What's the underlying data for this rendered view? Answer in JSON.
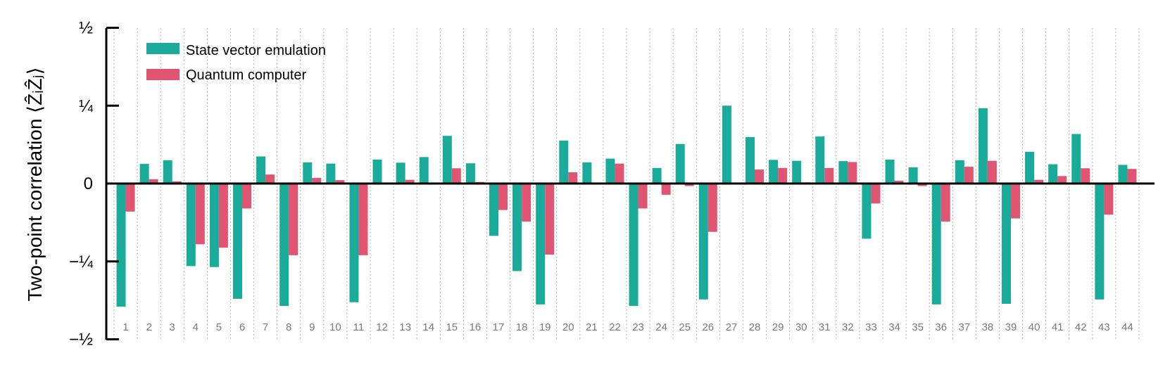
{
  "chart_data": {
    "type": "bar",
    "title": "",
    "xlabel": "",
    "ylabel": "Two-point correlation ⟨ẐᵢẐⱼ⟩",
    "ylim": [
      -0.5,
      0.5
    ],
    "yticks": [
      {
        "value": 0.5,
        "label": "½"
      },
      {
        "value": 0.25,
        "label": "¼"
      },
      {
        "value": 0,
        "label": "0"
      },
      {
        "value": -0.25,
        "label": "−¼"
      },
      {
        "value": -0.5,
        "label": "−½"
      }
    ],
    "grid": "vertical dotted separators",
    "legend_position": "top-left",
    "categories": [
      "1",
      "2",
      "3",
      "4",
      "5",
      "6",
      "7",
      "8",
      "9",
      "10",
      "11",
      "12",
      "13",
      "14",
      "15",
      "16",
      "17",
      "18",
      "19",
      "20",
      "21",
      "22",
      "23",
      "24",
      "25",
      "26",
      "27",
      "28",
      "29",
      "30",
      "31",
      "32",
      "33",
      "34",
      "35",
      "36",
      "37",
      "38",
      "39",
      "40",
      "41",
      "42",
      "43",
      "44"
    ],
    "series": [
      {
        "name": "State vector emulation",
        "color": "#1aab9b",
        "values": [
          -0.395,
          0.063,
          0.075,
          -0.265,
          -0.268,
          -0.37,
          0.087,
          -0.393,
          0.068,
          0.064,
          -0.381,
          0.077,
          0.067,
          0.085,
          0.153,
          0.065,
          -0.168,
          -0.281,
          -0.388,
          0.138,
          0.068,
          0.08,
          -0.393,
          0.05,
          0.127,
          -0.372,
          0.25,
          0.149,
          0.076,
          0.073,
          0.151,
          0.072,
          -0.177,
          0.077,
          0.052,
          -0.388,
          0.075,
          0.242,
          -0.386,
          0.102,
          0.062,
          0.159,
          -0.372,
          0.06
        ]
      },
      {
        "name": "Quantum computer",
        "color": "#e05572",
        "values": [
          -0.09,
          0.014,
          0.007,
          -0.195,
          -0.206,
          -0.08,
          0.029,
          -0.23,
          0.018,
          0.011,
          -0.23,
          -0.003,
          0.012,
          0.0,
          0.049,
          0.005,
          -0.085,
          -0.122,
          -0.228,
          0.036,
          0.0,
          0.064,
          -0.08,
          -0.036,
          -0.008,
          -0.155,
          0.0,
          0.045,
          0.05,
          0.004,
          0.05,
          0.069,
          -0.064,
          0.009,
          -0.008,
          -0.122,
          0.054,
          0.073,
          -0.112,
          0.012,
          0.024,
          0.049,
          -0.1,
          0.047
        ]
      }
    ]
  }
}
